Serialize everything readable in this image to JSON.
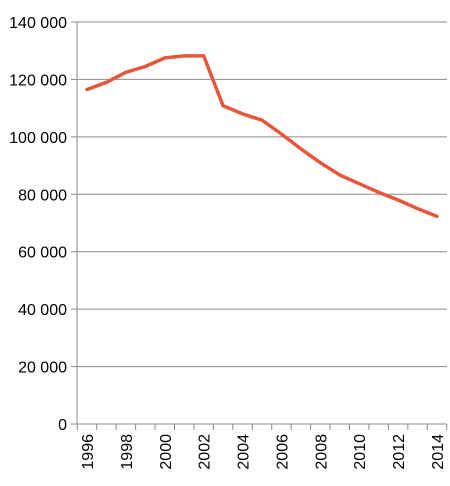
{
  "chart_data": {
    "type": "line",
    "title": "",
    "xlabel": "",
    "ylabel": "",
    "x": [
      1996,
      1997,
      1998,
      1999,
      2000,
      2001,
      2002,
      2003,
      2004,
      2005,
      2006,
      2007,
      2008,
      2009,
      2010,
      2011,
      2012,
      2013,
      2014
    ],
    "series": [
      {
        "values": [
          116500,
          119000,
          122500,
          124500,
          127500,
          128200,
          128200,
          110800,
          108000,
          105800,
          101000,
          95800,
          91000,
          86700,
          83700,
          80700,
          78000,
          75000,
          72300
        ]
      }
    ],
    "xlim": [
      1996,
      2014
    ],
    "ylim": [
      0,
      140000
    ],
    "yticks": [
      0,
      20000,
      40000,
      60000,
      80000,
      100000,
      120000,
      140000
    ],
    "ytick_labels": [
      "0",
      "20 000",
      "40 000",
      "60 000",
      "80 000",
      "100 000",
      "120 000",
      "140 000"
    ],
    "xticks": [
      1996,
      1998,
      2000,
      2002,
      2004,
      2006,
      2008,
      2010,
      2012,
      2014
    ],
    "xtick_labels": [
      "1996",
      "1998",
      "2000",
      "2002",
      "2004",
      "2006",
      "2008",
      "2010",
      "2012",
      "2014"
    ],
    "grid": "horizontal",
    "legend": "none",
    "colors": {
      "line": "#e8563a",
      "grid": "#8c8c8c",
      "axis": "#8c8c8c",
      "text": "#000000"
    }
  }
}
